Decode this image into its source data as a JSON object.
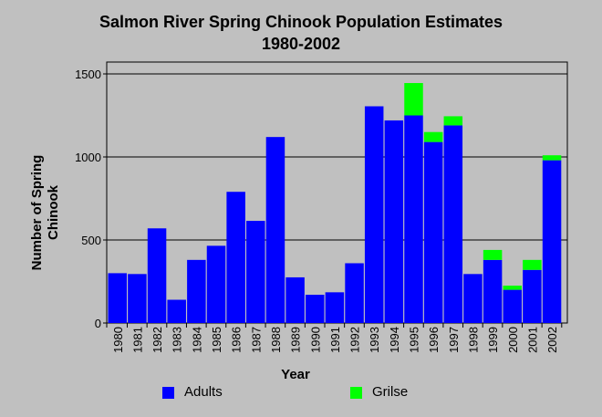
{
  "chart_data": {
    "type": "bar",
    "stacked": true,
    "title": "Salmon River Spring Chinook Population Estimates",
    "subtitle": "1980-2002",
    "xlabel": "Year",
    "ylabel": "Number of Spring Chinook",
    "ylim": [
      0,
      1500
    ],
    "yticks": [
      0,
      500,
      1000,
      1500
    ],
    "grid": true,
    "legend_position": "bottom",
    "categories": [
      "1980",
      "1981",
      "1982",
      "1983",
      "1984",
      "1985",
      "1986",
      "1987",
      "1988",
      "1989",
      "1990",
      "1991",
      "1992",
      "1993",
      "1994",
      "1995",
      "1996",
      "1997",
      "1998",
      "1999",
      "2000",
      "2001",
      "2002"
    ],
    "series": [
      {
        "name": "Adults",
        "color": "#0000ff",
        "values": [
          300,
          295,
          570,
          140,
          380,
          465,
          790,
          615,
          1120,
          275,
          170,
          185,
          360,
          1305,
          1220,
          1250,
          1090,
          1190,
          295,
          380,
          200,
          320,
          980
        ]
      },
      {
        "name": "Grilse",
        "color": "#00ff00",
        "values": [
          0,
          0,
          0,
          0,
          0,
          0,
          0,
          0,
          0,
          0,
          0,
          0,
          0,
          0,
          0,
          195,
          60,
          55,
          0,
          60,
          25,
          60,
          30
        ]
      }
    ]
  }
}
